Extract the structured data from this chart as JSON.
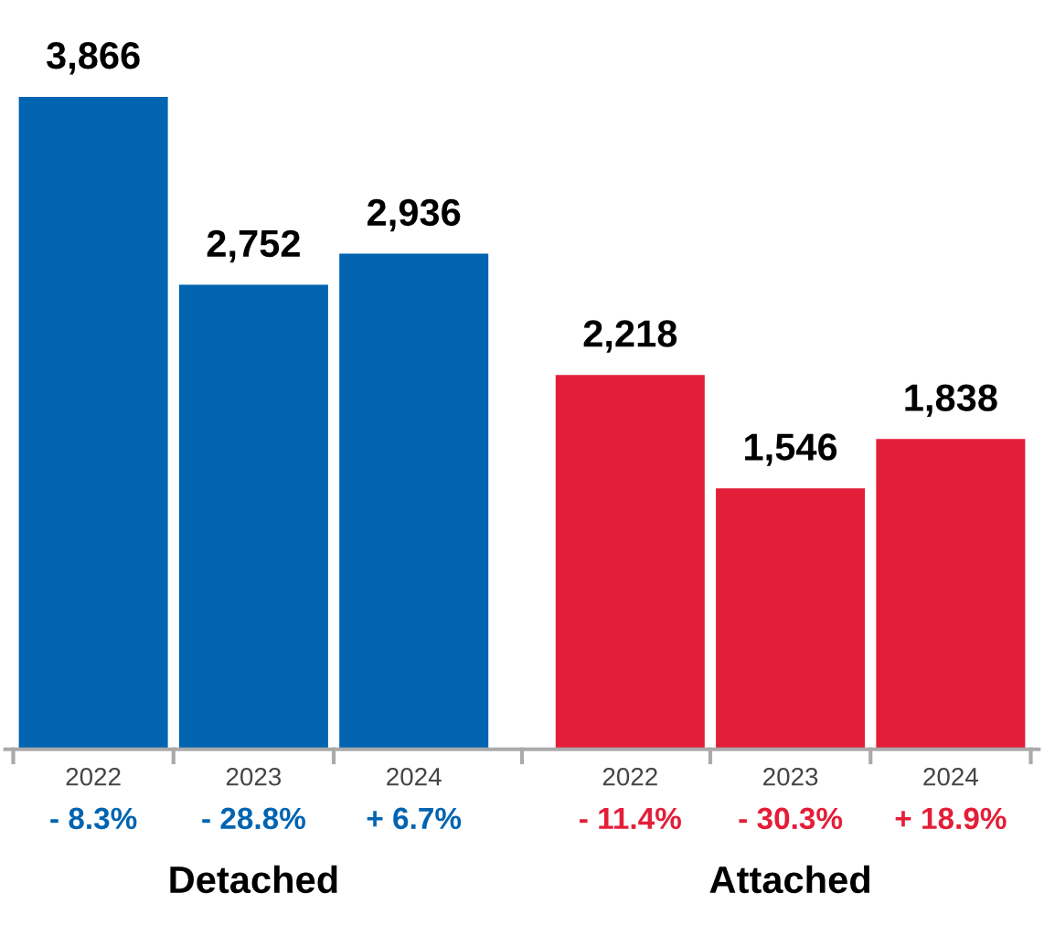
{
  "chart_data": {
    "type": "bar",
    "categories": [
      "2022",
      "2023",
      "2024",
      "2022",
      "2023",
      "2024"
    ],
    "series": [
      {
        "color": "#0064b0",
        "values": [
          3866,
          2752,
          2936,
          null,
          null,
          null
        ],
        "value_labels": [
          "3,866",
          "2,752",
          "2,936",
          null,
          null,
          null
        ]
      },
      {
        "color": "#e31e38",
        "values": [
          null,
          null,
          null,
          2218,
          1546,
          1838
        ],
        "value_labels": [
          null,
          null,
          null,
          "2,218",
          "1,546",
          "1,838"
        ]
      }
    ],
    "annotations": [
      "- 8.3%",
      "- 28.8%",
      "+ 6.7%",
      "- 11.4%",
      "- 30.3%",
      "+ 18.9%",
      "Detached",
      "Attached"
    ],
    "legend": false,
    "grid": false
  }
}
